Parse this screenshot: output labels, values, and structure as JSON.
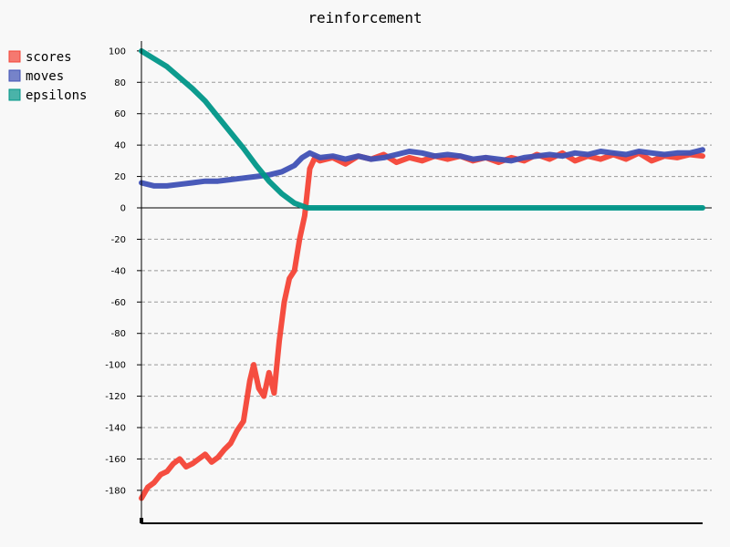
{
  "chart_data": {
    "type": "line",
    "title": "reinforcement",
    "xlabel": "",
    "ylabel": "",
    "ylim": [
      -190,
      105
    ],
    "xlim": [
      0,
      440
    ],
    "y_ticks": [
      100,
      80,
      60,
      40,
      20,
      0,
      -20,
      -40,
      -60,
      -80,
      -100,
      -120,
      -140,
      -160,
      -180
    ],
    "grid": "horizontal-dashed",
    "legend": "top-left",
    "series": [
      {
        "name": "scores",
        "color": "#f44336",
        "style": "thick-noisy",
        "points": [
          [
            0,
            -185
          ],
          [
            5,
            -178
          ],
          [
            10,
            -175
          ],
          [
            15,
            -170
          ],
          [
            20,
            -168
          ],
          [
            25,
            -163
          ],
          [
            30,
            -160
          ],
          [
            35,
            -165
          ],
          [
            40,
            -163
          ],
          [
            45,
            -160
          ],
          [
            50,
            -157
          ],
          [
            55,
            -162
          ],
          [
            60,
            -159
          ],
          [
            65,
            -154
          ],
          [
            70,
            -150
          ],
          [
            75,
            -142
          ],
          [
            80,
            -136
          ],
          [
            85,
            -110
          ],
          [
            88,
            -100
          ],
          [
            92,
            -115
          ],
          [
            96,
            -120
          ],
          [
            100,
            -105
          ],
          [
            104,
            -118
          ],
          [
            108,
            -85
          ],
          [
            112,
            -60
          ],
          [
            116,
            -45
          ],
          [
            120,
            -40
          ],
          [
            124,
            -20
          ],
          [
            128,
            -5
          ],
          [
            132,
            25
          ],
          [
            136,
            32
          ],
          [
            140,
            30
          ],
          [
            150,
            32
          ],
          [
            160,
            28
          ],
          [
            170,
            33
          ],
          [
            180,
            31
          ],
          [
            190,
            34
          ],
          [
            200,
            29
          ],
          [
            210,
            32
          ],
          [
            220,
            30
          ],
          [
            230,
            33
          ],
          [
            240,
            31
          ],
          [
            250,
            33
          ],
          [
            260,
            30
          ],
          [
            270,
            32
          ],
          [
            280,
            29
          ],
          [
            290,
            32
          ],
          [
            300,
            30
          ],
          [
            310,
            34
          ],
          [
            320,
            31
          ],
          [
            330,
            35
          ],
          [
            340,
            30
          ],
          [
            350,
            33
          ],
          [
            360,
            31
          ],
          [
            370,
            34
          ],
          [
            380,
            31
          ],
          [
            390,
            35
          ],
          [
            400,
            30
          ],
          [
            410,
            33
          ],
          [
            420,
            32
          ],
          [
            430,
            34
          ],
          [
            440,
            33
          ]
        ]
      },
      {
        "name": "moves",
        "color": "#3f51b5",
        "style": "thick",
        "points": [
          [
            0,
            16
          ],
          [
            10,
            14
          ],
          [
            20,
            14
          ],
          [
            30,
            15
          ],
          [
            40,
            16
          ],
          [
            50,
            17
          ],
          [
            60,
            17
          ],
          [
            70,
            18
          ],
          [
            80,
            19
          ],
          [
            90,
            20
          ],
          [
            100,
            21
          ],
          [
            110,
            23
          ],
          [
            120,
            27
          ],
          [
            126,
            32
          ],
          [
            132,
            35
          ],
          [
            140,
            32
          ],
          [
            150,
            33
          ],
          [
            160,
            31
          ],
          [
            170,
            33
          ],
          [
            180,
            31
          ],
          [
            190,
            32
          ],
          [
            200,
            34
          ],
          [
            210,
            36
          ],
          [
            220,
            35
          ],
          [
            230,
            33
          ],
          [
            240,
            34
          ],
          [
            250,
            33
          ],
          [
            260,
            31
          ],
          [
            270,
            32
          ],
          [
            280,
            31
          ],
          [
            290,
            30
          ],
          [
            300,
            32
          ],
          [
            310,
            33
          ],
          [
            320,
            34
          ],
          [
            330,
            33
          ],
          [
            340,
            35
          ],
          [
            350,
            34
          ],
          [
            360,
            36
          ],
          [
            370,
            35
          ],
          [
            380,
            34
          ],
          [
            390,
            36
          ],
          [
            400,
            35
          ],
          [
            410,
            34
          ],
          [
            420,
            35
          ],
          [
            430,
            35
          ],
          [
            440,
            37
          ]
        ]
      },
      {
        "name": "epsilons",
        "color": "#009688",
        "style": "thick",
        "points": [
          [
            0,
            100
          ],
          [
            10,
            95
          ],
          [
            20,
            90
          ],
          [
            30,
            83
          ],
          [
            40,
            76
          ],
          [
            50,
            68
          ],
          [
            60,
            58
          ],
          [
            70,
            48
          ],
          [
            80,
            38
          ],
          [
            90,
            27
          ],
          [
            100,
            17
          ],
          [
            110,
            9
          ],
          [
            120,
            3
          ],
          [
            130,
            0
          ],
          [
            200,
            0
          ],
          [
            300,
            0
          ],
          [
            400,
            0
          ],
          [
            440,
            0
          ]
        ]
      }
    ]
  }
}
